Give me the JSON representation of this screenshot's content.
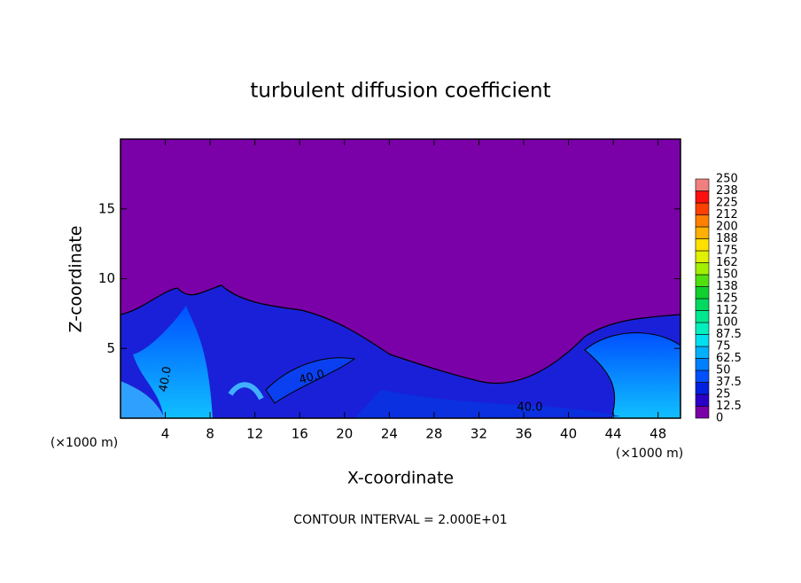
{
  "chart_data": {
    "type": "contour",
    "title": "turbulent diffusion coefficient",
    "xlabel": "X-coordinate",
    "ylabel": "Z-coordinate",
    "x_unit": "(×1000 m)",
    "y_unit": "(×1000 m)",
    "footer": "CONTOUR INTERVAL = 2.000E+01",
    "xlim": [
      0,
      50
    ],
    "ylim": [
      0,
      20
    ],
    "xticks": [
      4,
      8,
      12,
      16,
      20,
      24,
      28,
      32,
      36,
      40,
      44,
      48
    ],
    "yticks": [
      5,
      10,
      15
    ],
    "contour_labels": [
      "40.0",
      "40.0",
      "40.0"
    ],
    "colorbar": {
      "levels": [
        0,
        12.5,
        25,
        37.5,
        50,
        62.5,
        75,
        87.5,
        100,
        112,
        125,
        138,
        150,
        162,
        175,
        188,
        200,
        212,
        225,
        238,
        250
      ],
      "colors": [
        "#7a00a8",
        "#2a00c8",
        "#0020e0",
        "#0050ff",
        "#0080ff",
        "#00b0ff",
        "#00e0f0",
        "#00f0c0",
        "#00e890",
        "#00d860",
        "#10d030",
        "#50e010",
        "#a0f000",
        "#e0f000",
        "#ffe000",
        "#ffb000",
        "#ff8000",
        "#ff4000",
        "#ff1010",
        "#f08080"
      ]
    }
  }
}
